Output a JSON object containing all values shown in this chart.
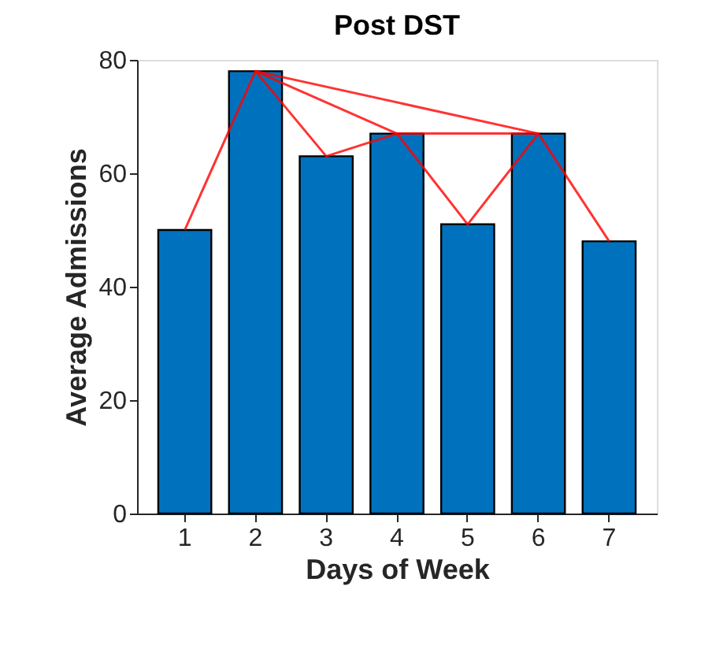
{
  "chart_data": {
    "type": "bar",
    "title": "Post DST",
    "xlabel": "Days of Week",
    "ylabel": "Average Admissions",
    "categories": [
      "1",
      "2",
      "3",
      "4",
      "5",
      "6",
      "7"
    ],
    "series": [
      {
        "color": "#0072bd",
        "values": [
          50,
          78,
          63,
          67,
          51,
          67,
          48
        ]
      },
      {
        "type": "line",
        "color": "#ff0000",
        "x": [
          "1",
          "2",
          "3",
          "4",
          "5",
          "6",
          "7"
        ],
        "values": [
          50,
          78,
          63,
          67,
          51,
          67,
          48
        ]
      },
      {
        "type": "line",
        "color": "#ff0000",
        "x": [
          "2",
          "4",
          "6"
        ],
        "values": [
          78,
          67,
          67
        ]
      },
      {
        "type": "line",
        "color": "#ff0000",
        "x": [
          "2",
          "6"
        ],
        "values": [
          78,
          67
        ]
      }
    ],
    "ylim": [
      0,
      80
    ],
    "yticks": [
      0,
      20,
      40,
      60,
      80
    ],
    "grid": false,
    "marker": "none"
  }
}
